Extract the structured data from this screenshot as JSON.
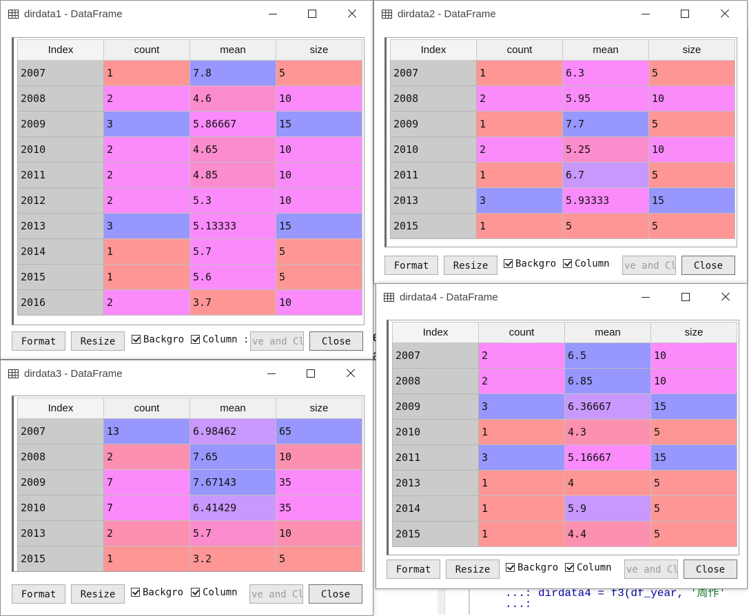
{
  "colors": {
    "red": "#fe9696",
    "magenta": "#fb8bfb",
    "blue": "#9797fe",
    "pink": "#fb8ccd",
    "purple": "#c898fc",
    "salmon": "#fc90b0"
  },
  "background": {
    "code_line1": "...: dirdata4 = f3(df_year,",
    "code_line1_str": "'周作'",
    "code_line2": "...:",
    "char_a": "e",
    "char_b": "a"
  },
  "windows": [
    {
      "title": "dirdata1 - DataFrame",
      "columns": [
        "Index",
        "count",
        "mean",
        "size"
      ],
      "rows": [
        {
          "index": "2007",
          "cells": [
            "1",
            "7.8",
            "5"
          ],
          "colors": [
            "red",
            "blue",
            "red"
          ]
        },
        {
          "index": "2008",
          "cells": [
            "2",
            "4.6",
            "10"
          ],
          "colors": [
            "magenta",
            "pink",
            "magenta"
          ]
        },
        {
          "index": "2009",
          "cells": [
            "3",
            "5.86667",
            "15"
          ],
          "colors": [
            "blue",
            "magenta",
            "blue"
          ]
        },
        {
          "index": "2010",
          "cells": [
            "2",
            "4.65",
            "10"
          ],
          "colors": [
            "magenta",
            "pink",
            "magenta"
          ]
        },
        {
          "index": "2011",
          "cells": [
            "2",
            "4.85",
            "10"
          ],
          "colors": [
            "magenta",
            "pink",
            "magenta"
          ]
        },
        {
          "index": "2012",
          "cells": [
            "2",
            "5.3",
            "10"
          ],
          "colors": [
            "magenta",
            "magenta",
            "magenta"
          ]
        },
        {
          "index": "2013",
          "cells": [
            "3",
            "5.13333",
            "15"
          ],
          "colors": [
            "blue",
            "magenta",
            "blue"
          ]
        },
        {
          "index": "2014",
          "cells": [
            "1",
            "5.7",
            "5"
          ],
          "colors": [
            "red",
            "magenta",
            "red"
          ]
        },
        {
          "index": "2015",
          "cells": [
            "1",
            "5.6",
            "5"
          ],
          "colors": [
            "red",
            "magenta",
            "red"
          ]
        },
        {
          "index": "2016",
          "cells": [
            "2",
            "3.7",
            "10"
          ],
          "colors": [
            "magenta",
            "red",
            "magenta"
          ]
        }
      ],
      "buttons": {
        "format": "Format",
        "resize": "Resize",
        "background": "Backgro",
        "column": "Column :",
        "save": "ve and Clo",
        "close": "Close"
      }
    },
    {
      "title": "dirdata2 - DataFrame",
      "columns": [
        "Index",
        "count",
        "mean",
        "size"
      ],
      "rows": [
        {
          "index": "2007",
          "cells": [
            "1",
            "6.3",
            "5"
          ],
          "colors": [
            "red",
            "magenta",
            "red"
          ]
        },
        {
          "index": "2008",
          "cells": [
            "2",
            "5.95",
            "10"
          ],
          "colors": [
            "magenta",
            "magenta",
            "magenta"
          ]
        },
        {
          "index": "2009",
          "cells": [
            "1",
            "7.7",
            "5"
          ],
          "colors": [
            "red",
            "blue",
            "red"
          ]
        },
        {
          "index": "2010",
          "cells": [
            "2",
            "5.25",
            "10"
          ],
          "colors": [
            "magenta",
            "pink",
            "magenta"
          ]
        },
        {
          "index": "2011",
          "cells": [
            "1",
            "6.7",
            "5"
          ],
          "colors": [
            "red",
            "purple",
            "red"
          ]
        },
        {
          "index": "2013",
          "cells": [
            "3",
            "5.93333",
            "15"
          ],
          "colors": [
            "blue",
            "magenta",
            "blue"
          ]
        },
        {
          "index": "2015",
          "cells": [
            "1",
            "5",
            "5"
          ],
          "colors": [
            "red",
            "red",
            "red"
          ]
        }
      ],
      "buttons": {
        "format": "Format",
        "resize": "Resize",
        "background": "Backgro",
        "column": "Column",
        "save": "ve and Clo",
        "close": "Close"
      }
    },
    {
      "title": "dirdata3 - DataFrame",
      "columns": [
        "Index",
        "count",
        "mean",
        "size"
      ],
      "rows": [
        {
          "index": "2007",
          "cells": [
            "13",
            "6.98462",
            "65"
          ],
          "colors": [
            "blue",
            "purple",
            "blue"
          ]
        },
        {
          "index": "2008",
          "cells": [
            "2",
            "7.65",
            "10"
          ],
          "colors": [
            "salmon",
            "blue",
            "salmon"
          ]
        },
        {
          "index": "2009",
          "cells": [
            "7",
            "7.67143",
            "35"
          ],
          "colors": [
            "magenta",
            "blue",
            "magenta"
          ]
        },
        {
          "index": "2010",
          "cells": [
            "7",
            "6.41429",
            "35"
          ],
          "colors": [
            "magenta",
            "purple",
            "magenta"
          ]
        },
        {
          "index": "2013",
          "cells": [
            "2",
            "5.7",
            "10"
          ],
          "colors": [
            "salmon",
            "pink",
            "salmon"
          ]
        },
        {
          "index": "2015",
          "cells": [
            "1",
            "3.2",
            "5"
          ],
          "colors": [
            "red",
            "red",
            "red"
          ]
        }
      ],
      "buttons": {
        "format": "Format",
        "resize": "Resize",
        "background": "Backgro",
        "column": "Column",
        "save": "ve and Clo",
        "close": "Close"
      }
    },
    {
      "title": "dirdata4 - DataFrame",
      "columns": [
        "Index",
        "count",
        "mean",
        "size"
      ],
      "rows": [
        {
          "index": "2007",
          "cells": [
            "2",
            "6.5",
            "10"
          ],
          "colors": [
            "magenta",
            "blue",
            "magenta"
          ]
        },
        {
          "index": "2008",
          "cells": [
            "2",
            "6.85",
            "10"
          ],
          "colors": [
            "magenta",
            "blue",
            "magenta"
          ]
        },
        {
          "index": "2009",
          "cells": [
            "3",
            "6.36667",
            "15"
          ],
          "colors": [
            "blue",
            "purple",
            "blue"
          ]
        },
        {
          "index": "2010",
          "cells": [
            "1",
            "4.3",
            "5"
          ],
          "colors": [
            "red",
            "salmon",
            "red"
          ]
        },
        {
          "index": "2011",
          "cells": [
            "3",
            "5.16667",
            "15"
          ],
          "colors": [
            "blue",
            "magenta",
            "blue"
          ]
        },
        {
          "index": "2013",
          "cells": [
            "1",
            "4",
            "5"
          ],
          "colors": [
            "red",
            "red",
            "red"
          ]
        },
        {
          "index": "2014",
          "cells": [
            "1",
            "5.9",
            "5"
          ],
          "colors": [
            "red",
            "purple",
            "red"
          ]
        },
        {
          "index": "2015",
          "cells": [
            "1",
            "4.4",
            "5"
          ],
          "colors": [
            "red",
            "salmon",
            "red"
          ]
        }
      ],
      "buttons": {
        "format": "Format",
        "resize": "Resize",
        "background": "Backgro",
        "column": "Column",
        "save": "ve and Clo",
        "close": "Close"
      }
    }
  ]
}
